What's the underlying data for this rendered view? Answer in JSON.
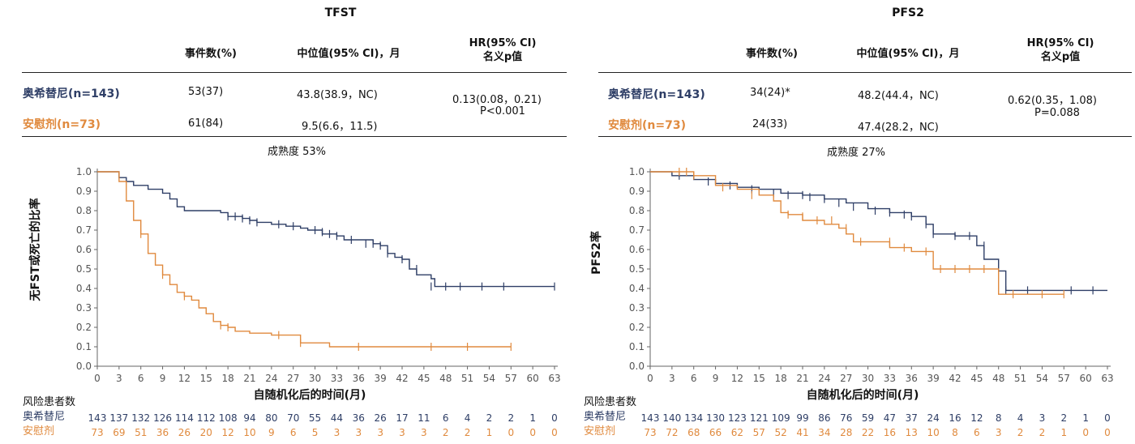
{
  "colors": {
    "treatment": "#2e3e66",
    "placebo": "#e08a3e",
    "axis": "#666666"
  },
  "panels": [
    {
      "title": "TFST",
      "table": {
        "headers": [
          "事件数(%)",
          "中位值(95% CI)，月",
          "HR(95% CI)\n名义p值"
        ],
        "rows": [
          {
            "label": "奥希替尼(n=143)",
            "events": "53(37)",
            "median": "43.8(38.9，NC)"
          },
          {
            "label": "安慰剂(n=73)",
            "events": "61(84)",
            "median": "9.5(6.6，11.5)"
          }
        ],
        "hr": "0.13(0.08，0.21)",
        "p": "P<0.001"
      },
      "maturity": "成熟度 53%",
      "chart_data": {
        "type": "line",
        "ylabel": "无FST或死亡的比率",
        "xlabel": "自随机化后的时间(月)",
        "xlim": [
          0,
          63
        ],
        "ylim": [
          0,
          1
        ],
        "xticks": [
          0,
          3,
          6,
          9,
          12,
          15,
          18,
          21,
          24,
          27,
          30,
          33,
          36,
          39,
          42,
          45,
          48,
          51,
          54,
          57,
          60,
          63
        ],
        "yticks": [
          "0.0",
          "0.1",
          "0.2",
          "0.3",
          "0.4",
          "0.5",
          "0.6",
          "0.7",
          "0.8",
          "0.9",
          "1.0"
        ],
        "series": [
          {
            "name": "奥希替尼",
            "color": "#2e3e66",
            "x": [
              0,
              2,
              3,
              4,
              5,
              7,
              9,
              10,
              11,
              12,
              17,
              18,
              20,
              21,
              22,
              24,
              26,
              28,
              29,
              31,
              33,
              34,
              38,
              39,
              40,
              41,
              42,
              43,
              44,
              45,
              46,
              46.5,
              63
            ],
            "y": [
              1,
              1,
              0.97,
              0.95,
              0.93,
              0.91,
              0.89,
              0.86,
              0.82,
              0.8,
              0.79,
              0.77,
              0.76,
              0.75,
              0.74,
              0.73,
              0.72,
              0.71,
              0.7,
              0.68,
              0.67,
              0.65,
              0.63,
              0.62,
              0.58,
              0.56,
              0.55,
              0.5,
              0.47,
              0.47,
              0.45,
              0.41,
              0.41
            ],
            "censor_x": [
              18,
              19,
              20,
              21,
              22,
              25,
              27,
              30,
              31,
              32,
              33,
              35,
              37,
              38,
              39,
              40,
              42,
              43,
              44,
              46,
              48,
              50,
              53,
              56,
              63
            ],
            "censor_y": [
              0.77,
              0.77,
              0.76,
              0.75,
              0.74,
              0.73,
              0.72,
              0.7,
              0.69,
              0.68,
              0.67,
              0.65,
              0.63,
              0.63,
              0.62,
              0.58,
              0.55,
              0.53,
              0.5,
              0.41,
              0.41,
              0.41,
              0.41,
              0.41,
              0.41
            ]
          },
          {
            "name": "安慰剂",
            "color": "#e08a3e",
            "x": [
              0,
              2,
              3,
              4,
              5,
              6,
              7,
              8,
              9,
              10,
              11,
              12,
              13,
              14,
              15,
              16,
              17,
              18,
              19,
              21,
              24,
              28,
              32,
              36,
              57
            ],
            "y": [
              1,
              1,
              0.95,
              0.85,
              0.75,
              0.68,
              0.58,
              0.52,
              0.47,
              0.42,
              0.38,
              0.36,
              0.34,
              0.3,
              0.27,
              0.23,
              0.21,
              0.2,
              0.18,
              0.17,
              0.16,
              0.12,
              0.1,
              0.1,
              0.1
            ],
            "censor_x": [
              6,
              9,
              12,
              17,
              18,
              25,
              28,
              36,
              46,
              51,
              57
            ],
            "censor_y": [
              0.68,
              0.47,
              0.36,
              0.21,
              0.2,
              0.16,
              0.12,
              0.1,
              0.1,
              0.1,
              0.1
            ]
          }
        ]
      },
      "risk": {
        "header": "风险患者数",
        "rows": [
          {
            "label": "奥希替尼",
            "values": [
              "143",
              "137",
              "132",
              "126",
              "114",
              "112",
              "108",
              "94",
              "80",
              "70",
              "55",
              "44",
              "36",
              "26",
              "17",
              "11",
              "6",
              "4",
              "2",
              "2",
              "1",
              "0"
            ]
          },
          {
            "label": "安慰剂",
            "values": [
              "73",
              "69",
              "51",
              "36",
              "26",
              "20",
              "12",
              "10",
              "9",
              "6",
              "5",
              "3",
              "3",
              "3",
              "3",
              "3",
              "2",
              "2",
              "1",
              "0",
              "0",
              "0"
            ]
          }
        ]
      }
    },
    {
      "title": "PFS2",
      "table": {
        "headers": [
          "事件数(%)",
          "中位值(95% CI)，月",
          "HR(95% CI)\n名义p值"
        ],
        "rows": [
          {
            "label": "奥希替尼(n=143)",
            "events": "34(24)*",
            "median": "48.2(44.4，NC)"
          },
          {
            "label": "安慰剂(n=73)",
            "events": "24(33)",
            "median": "47.4(28.2，NC)"
          }
        ],
        "hr": "0.62(0.35，1.08)",
        "p": "P=0.088"
      },
      "maturity": "成熟度 27%",
      "chart_data": {
        "type": "line",
        "ylabel": "PFS2率",
        "xlabel": "自随机化后的时间(月)",
        "xlim": [
          0,
          63
        ],
        "ylim": [
          0,
          1
        ],
        "xticks": [
          0,
          3,
          6,
          9,
          12,
          15,
          18,
          21,
          24,
          27,
          30,
          33,
          36,
          39,
          42,
          45,
          48,
          51,
          54,
          57,
          60,
          63
        ],
        "yticks": [
          "0.0",
          "0.1",
          "0.2",
          "0.3",
          "0.4",
          "0.5",
          "0.6",
          "0.7",
          "0.8",
          "0.9",
          "1.0"
        ],
        "series": [
          {
            "name": "奥希替尼",
            "color": "#2e3e66",
            "x": [
              0,
              3,
              6,
              9,
              12,
              15,
              18,
              21,
              24,
              27,
              30,
              33,
              36,
              38,
              39,
              42,
              45,
              46,
              48,
              49,
              63
            ],
            "y": [
              1,
              0.98,
              0.96,
              0.94,
              0.92,
              0.91,
              0.89,
              0.88,
              0.86,
              0.84,
              0.81,
              0.79,
              0.77,
              0.73,
              0.68,
              0.67,
              0.62,
              0.55,
              0.49,
              0.39,
              0.39
            ],
            "censor_x": [
              4,
              8,
              11,
              14,
              17,
              19,
              21,
              22,
              24,
              26,
              28,
              31,
              33,
              35,
              36,
              38,
              39,
              42,
              44,
              46,
              49,
              52,
              58,
              61
            ],
            "censor_y": [
              0.98,
              0.95,
              0.93,
              0.91,
              0.89,
              0.88,
              0.88,
              0.87,
              0.86,
              0.84,
              0.82,
              0.8,
              0.79,
              0.78,
              0.77,
              0.73,
              0.68,
              0.67,
              0.67,
              0.62,
              0.39,
              0.39,
              0.39,
              0.39
            ]
          },
          {
            "name": "安慰剂",
            "color": "#e08a3e",
            "x": [
              0,
              4,
              6,
              9,
              12,
              15,
              17,
              18,
              19,
              21,
              24,
              26,
              27,
              28,
              30,
              33,
              36,
              39,
              42,
              45,
              48,
              57
            ],
            "y": [
              1,
              1,
              0.98,
              0.93,
              0.91,
              0.88,
              0.85,
              0.79,
              0.78,
              0.75,
              0.73,
              0.71,
              0.68,
              0.64,
              0.64,
              0.61,
              0.59,
              0.5,
              0.5,
              0.5,
              0.37,
              0.37
            ],
            "censor_x": [
              4,
              5,
              6,
              10,
              14,
              19,
              21,
              23,
              25,
              27,
              29,
              33,
              35,
              38,
              40,
              42,
              44,
              46,
              50,
              54,
              57
            ],
            "censor_y": [
              1,
              1,
              0.98,
              0.92,
              0.88,
              0.78,
              0.77,
              0.75,
              0.75,
              0.71,
              0.64,
              0.64,
              0.61,
              0.59,
              0.5,
              0.5,
              0.5,
              0.5,
              0.37,
              0.37,
              0.37
            ]
          }
        ]
      },
      "risk": {
        "header": "风险患者数",
        "rows": [
          {
            "label": "奥希替尼",
            "values": [
              "143",
              "140",
              "134",
              "130",
              "123",
              "121",
              "109",
              "99",
              "86",
              "76",
              "59",
              "47",
              "37",
              "24",
              "16",
              "12",
              "8",
              "4",
              "3",
              "2",
              "1",
              "0"
            ]
          },
          {
            "label": "安慰剂",
            "values": [
              "73",
              "72",
              "68",
              "66",
              "62",
              "57",
              "52",
              "41",
              "34",
              "28",
              "22",
              "16",
              "13",
              "10",
              "8",
              "6",
              "3",
              "2",
              "2",
              "1",
              "0",
              "0"
            ]
          }
        ]
      }
    }
  ]
}
